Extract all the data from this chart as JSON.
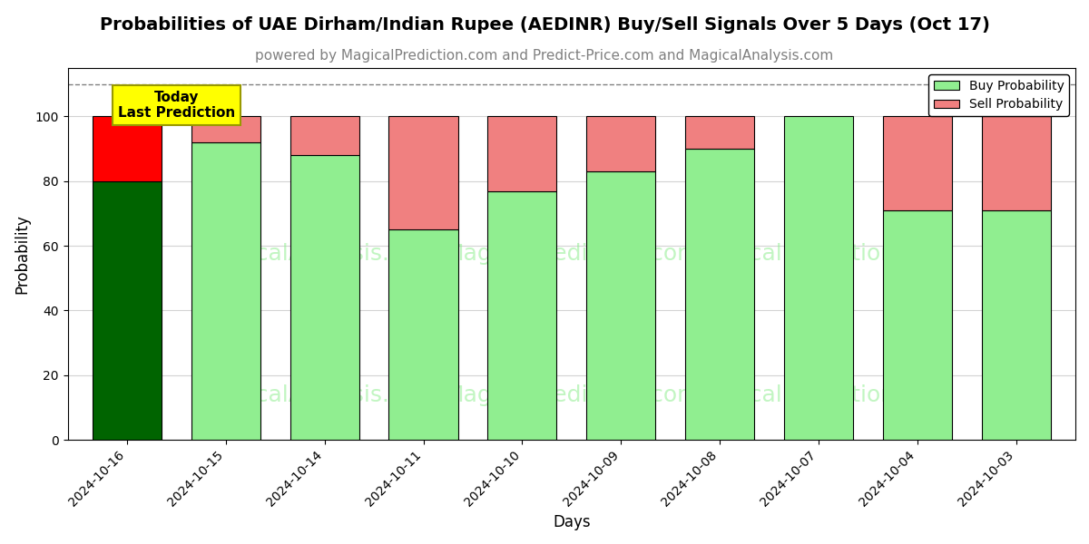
{
  "title": "Probabilities of UAE Dirham/Indian Rupee (AEDINR) Buy/Sell Signals Over 5 Days (Oct 17)",
  "subtitle": "powered by MagicalPrediction.com and Predict-Price.com and MagicalAnalysis.com",
  "xlabel": "Days",
  "ylabel": "Probability",
  "dates": [
    "2024-10-16",
    "2024-10-15",
    "2024-10-14",
    "2024-10-11",
    "2024-10-10",
    "2024-10-09",
    "2024-10-08",
    "2024-10-07",
    "2024-10-04",
    "2024-10-03"
  ],
  "buy_values": [
    80,
    92,
    88,
    65,
    77,
    83,
    90,
    100,
    71,
    71
  ],
  "sell_values": [
    20,
    8,
    12,
    35,
    23,
    17,
    10,
    0,
    29,
    29
  ],
  "buy_color_today": "#006400",
  "sell_color_today": "#FF0000",
  "buy_color_normal": "#90EE90",
  "sell_color_normal": "#F08080",
  "bar_edge_color": "#000000",
  "dashed_line_y": 110,
  "ylim": [
    0,
    115
  ],
  "yticks": [
    0,
    20,
    40,
    60,
    80,
    100
  ],
  "annotation_text": "Today\nLast Prediction",
  "annotation_bg": "#FFFF00",
  "legend_buy_label": "Buy Probability",
  "legend_sell_label": "Sell Probability",
  "watermark1": "MagicalAnalysis.com",
  "watermark2": "MagicalPrediction.com",
  "title_fontsize": 14,
  "subtitle_fontsize": 11,
  "label_fontsize": 12
}
